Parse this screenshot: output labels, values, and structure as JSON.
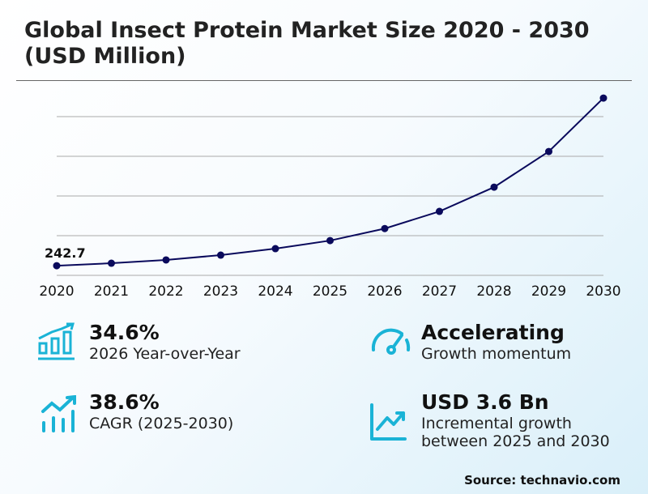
{
  "title_line1": "Global Insect Protein Market Size 2020 - 2030",
  "title_line2": "(USD Million)",
  "chart_data": {
    "type": "line",
    "title": "Global Insect Protein Market Size 2020 - 2030 (USD Million)",
    "x": [
      "2020",
      "2021",
      "2022",
      "2023",
      "2024",
      "2025",
      "2026",
      "2027",
      "2028",
      "2029",
      "2030"
    ],
    "values": [
      242.7,
      306,
      388,
      510,
      673,
      876,
      1179,
      1611,
      2223,
      3121,
      4468
    ],
    "data_labels": [
      {
        "x": "2020",
        "text": "242.7"
      }
    ],
    "ylim": [
      0,
      4600
    ],
    "grid": true,
    "gridlines": [
      1000,
      2000,
      3000,
      4000
    ],
    "line_color": "#0a0a5c"
  },
  "stats": [
    {
      "value": "34.6%",
      "label": "2026 Year-over-Year",
      "icon": "bar-chart-up-icon"
    },
    {
      "value": "Accelerating",
      "label": "Growth momentum",
      "icon": "gauge-icon"
    },
    {
      "value": "38.6%",
      "label": "CAGR (2025-2030)",
      "icon": "trend-bars-icon"
    },
    {
      "value": "USD 3.6 Bn",
      "label_line1": "Incremental growth",
      "label_line2": "between 2025 and 2030",
      "icon": "line-graph-up-icon"
    }
  ],
  "accent_color": "#1ab3d6",
  "source": "Source: technavio.com"
}
